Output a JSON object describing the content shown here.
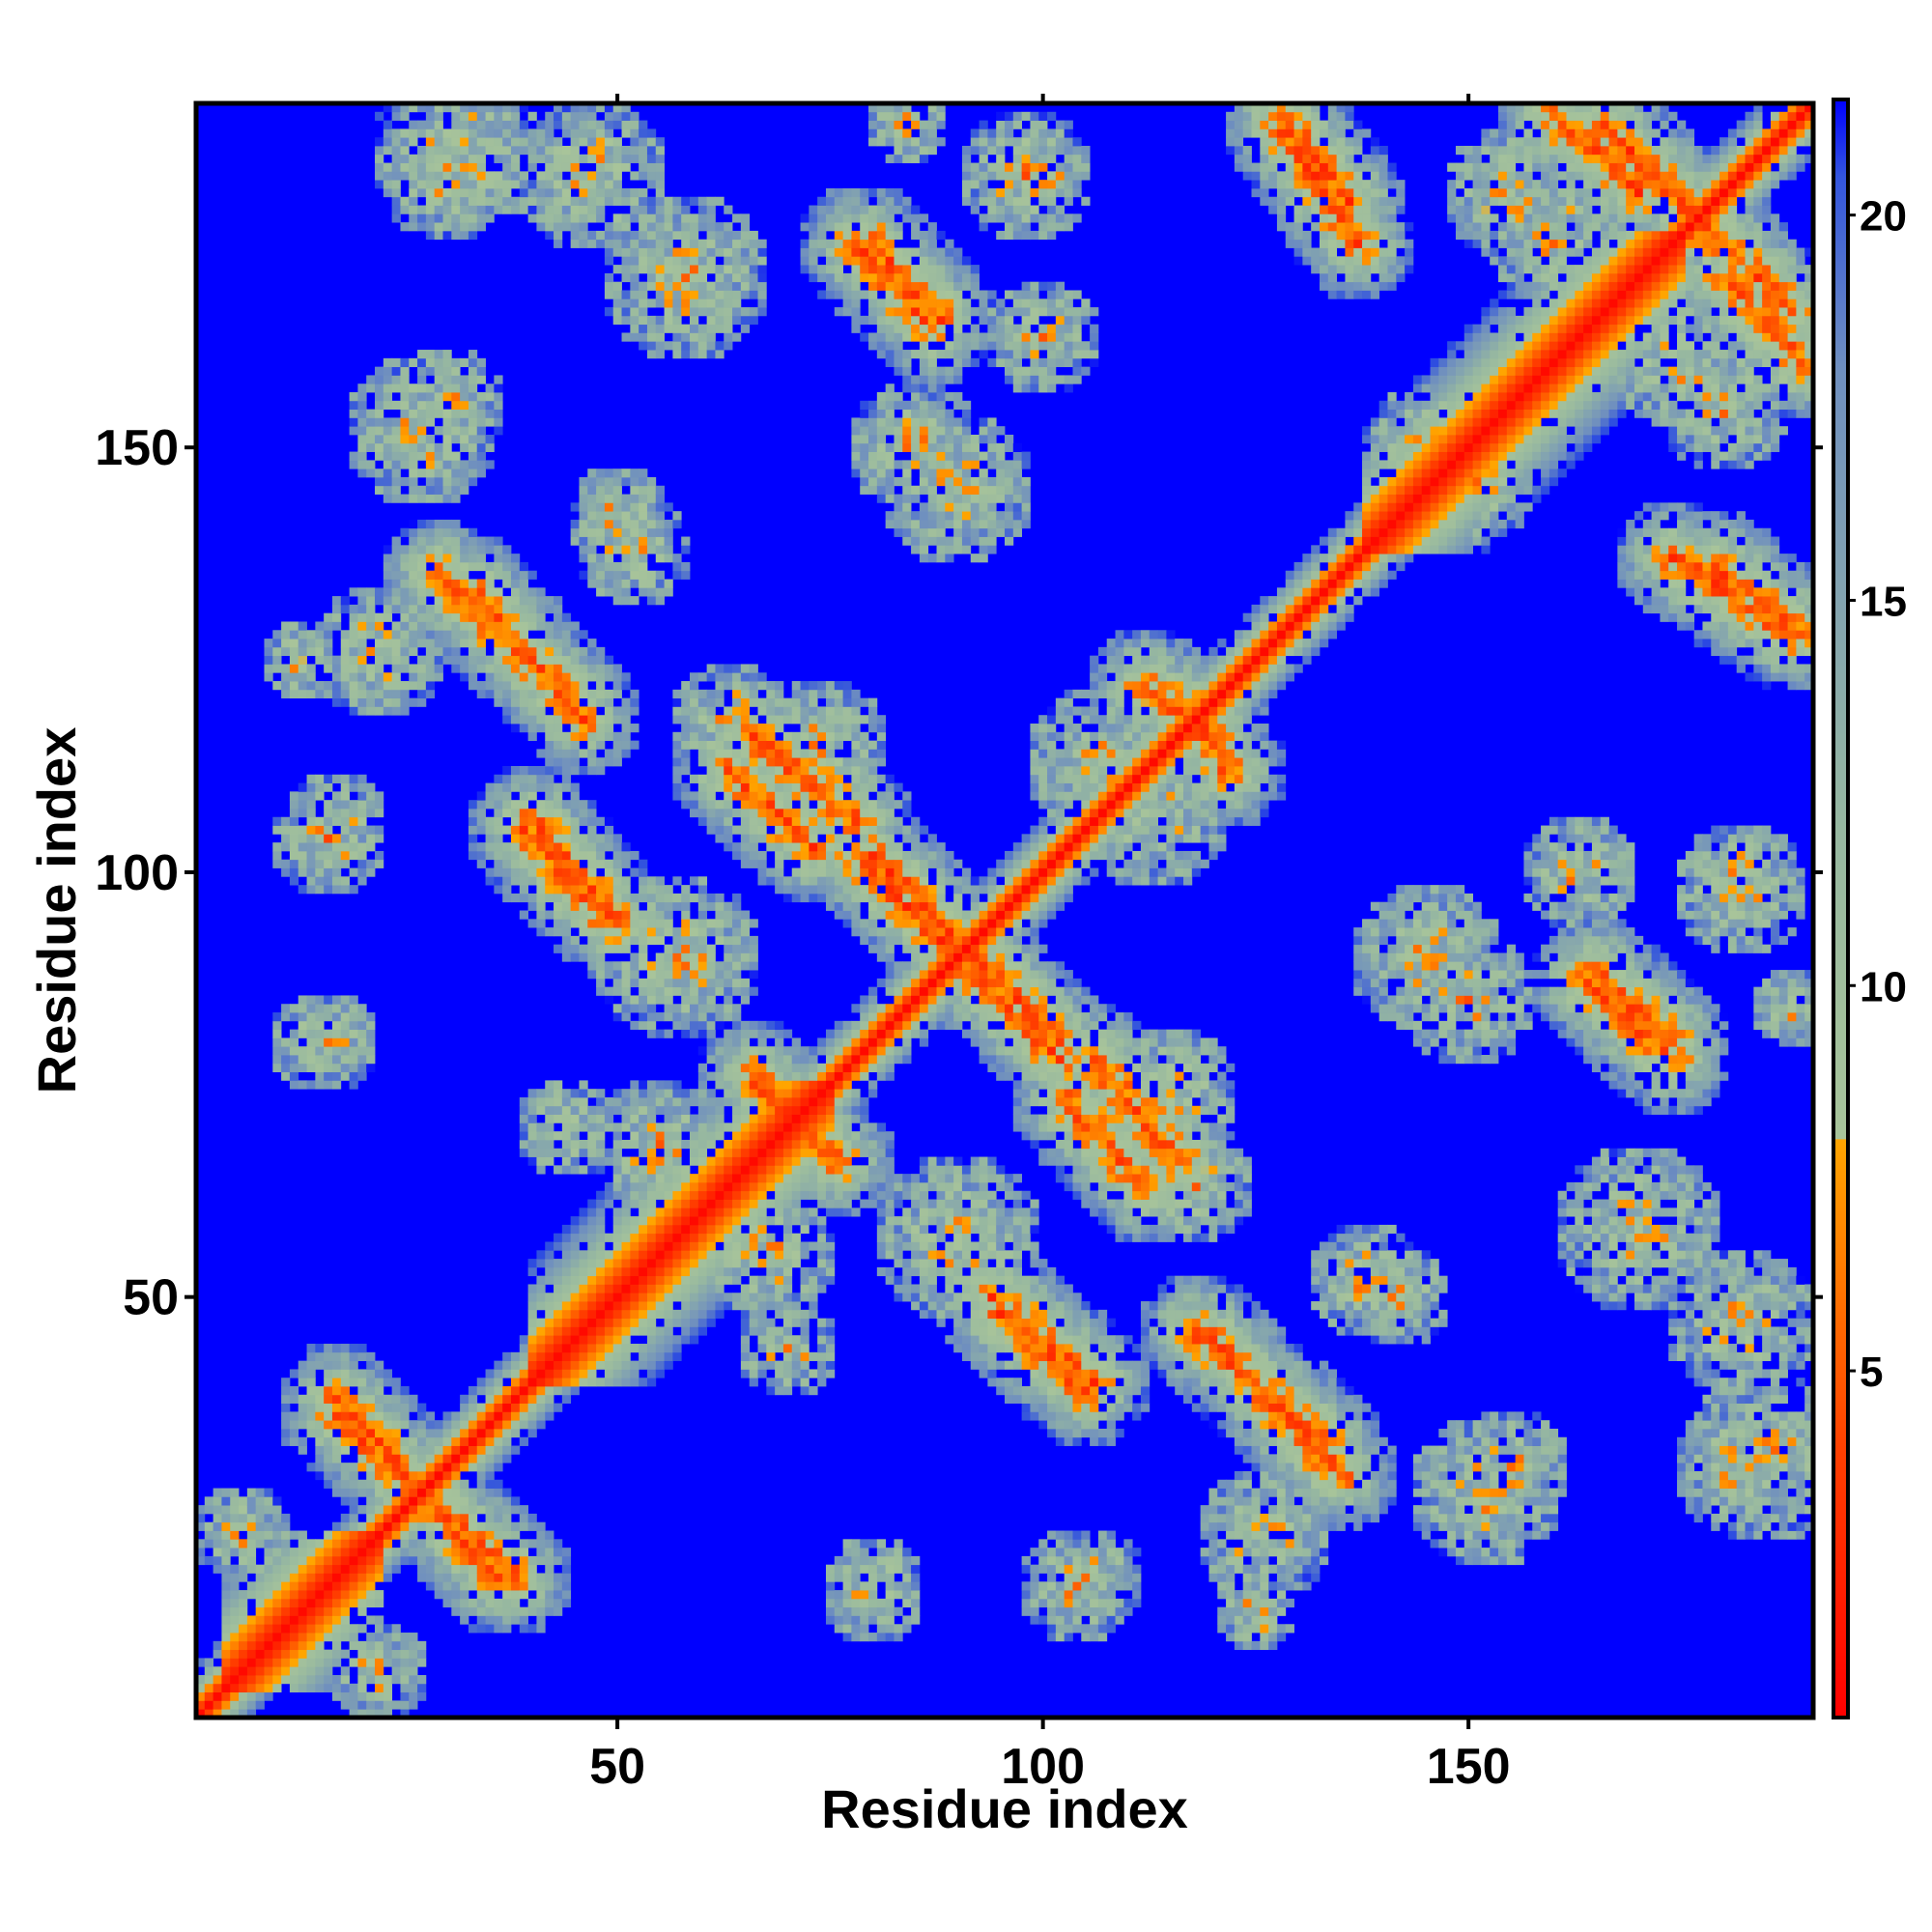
{
  "chart_data": {
    "type": "heatmap",
    "title": "",
    "xlabel": "Residue index",
    "ylabel": "Residue index",
    "xlim": [
      1,
      190
    ],
    "ylim": [
      1,
      190
    ],
    "x_ticks": [
      50,
      100,
      150
    ],
    "y_ticks": [
      50,
      100,
      150
    ],
    "x_tick_labels": [
      "50",
      "100",
      "150"
    ],
    "y_tick_labels": [
      "50",
      "100",
      "150"
    ],
    "colorbar": {
      "range": [
        0.5,
        21.5
      ],
      "ticks": [
        5,
        10,
        15,
        20
      ],
      "tick_labels": [
        "5",
        "10",
        "15",
        "20"
      ],
      "stops": [
        {
          "value": 0.5,
          "color": "#ff0000"
        },
        {
          "value": 4,
          "color": "#ff4000"
        },
        {
          "value": 8,
          "color": "#ffa500"
        },
        {
          "value": 8.01,
          "color": "#a8c49a"
        },
        {
          "value": 12,
          "color": "#97b8a0"
        },
        {
          "value": 18,
          "color": "#6f8fbf"
        },
        {
          "value": 20.5,
          "color": "#3355dd"
        },
        {
          "value": 21.5,
          "color": "#0000ff"
        }
      ]
    },
    "diagonal_band": {
      "core_width": 2,
      "value_at_diagonal": 1,
      "falloff_per_residue": 3
    },
    "helices": [
      {
        "start": 4,
        "end": 22
      },
      {
        "start": 40,
        "end": 75
      },
      {
        "start": 138,
        "end": 175
      }
    ],
    "contact_segments": [
      {
        "x1": 17,
        "y1": 38,
        "x2": 36,
        "y2": 17
      },
      {
        "x1": 29,
        "y1": 135,
        "x2": 45,
        "y2": 120
      },
      {
        "x1": 39,
        "y1": 105,
        "x2": 48,
        "y2": 95
      },
      {
        "x1": 66,
        "y1": 116,
        "x2": 78,
        "y2": 106
      },
      {
        "x1": 78,
        "y1": 102,
        "x2": 90,
        "y2": 90
      },
      {
        "x1": 92,
        "y1": 90,
        "x2": 102,
        "y2": 80
      },
      {
        "x1": 94,
        "y1": 50,
        "x2": 106,
        "y2": 40
      },
      {
        "x1": 118,
        "y1": 46,
        "x2": 133,
        "y2": 33
      },
      {
        "x1": 80,
        "y1": 174,
        "x2": 88,
        "y2": 165
      },
      {
        "x1": 128,
        "y1": 189,
        "x2": 136,
        "y2": 179
      },
      {
        "x1": 160,
        "y1": 189,
        "x2": 170,
        "y2": 180
      },
      {
        "x1": 178,
        "y1": 176,
        "x2": 188,
        "y2": 166
      },
      {
        "x1": 174,
        "y1": 137,
        "x2": 188,
        "y2": 128
      },
      {
        "x1": 164,
        "y1": 87,
        "x2": 174,
        "y2": 78
      },
      {
        "x1": 66,
        "y1": 76,
        "x2": 76,
        "y2": 66
      },
      {
        "x1": 103,
        "y1": 73,
        "x2": 112,
        "y2": 63
      },
      {
        "x1": 116,
        "y1": 120,
        "x2": 122,
        "y2": 112
      }
    ],
    "contact_clusters": [
      {
        "x": 17,
        "y": 106,
        "r": 6
      },
      {
        "x": 15,
        "y": 80,
        "r": 6
      },
      {
        "x": 30,
        "y": 155,
        "r": 7
      },
      {
        "x": 50,
        "y": 142,
        "r": 6
      },
      {
        "x": 47,
        "y": 182,
        "r": 9
      },
      {
        "x": 31,
        "y": 185,
        "r": 10
      },
      {
        "x": 85,
        "y": 150,
        "r": 8
      },
      {
        "x": 84,
        "y": 188,
        "r": 5
      },
      {
        "x": 100,
        "y": 182,
        "r": 6
      },
      {
        "x": 80,
        "y": 16,
        "r": 6
      },
      {
        "x": 104,
        "y": 16,
        "r": 7
      },
      {
        "x": 126,
        "y": 22,
        "r": 8
      },
      {
        "x": 138,
        "y": 52,
        "r": 7
      },
      {
        "x": 152,
        "y": 27,
        "r": 9
      },
      {
        "x": 182,
        "y": 30,
        "r": 8
      },
      {
        "x": 170,
        "y": 58,
        "r": 10
      },
      {
        "x": 145,
        "y": 90,
        "r": 9
      },
      {
        "x": 182,
        "y": 98,
        "r": 8
      },
      {
        "x": 163,
        "y": 100,
        "r": 7
      },
      {
        "x": 107,
        "y": 113,
        "r": 9
      },
      {
        "x": 57,
        "y": 90,
        "r": 10
      },
      {
        "x": 68,
        "y": 55,
        "r": 8
      },
      {
        "x": 44,
        "y": 70,
        "r": 6
      },
      {
        "x": 115,
        "y": 74,
        "r": 8
      },
      {
        "x": 6,
        "y": 22,
        "r": 6
      },
      {
        "x": 13,
        "y": 125,
        "r": 5
      },
      {
        "x": 63,
        "y": 118,
        "r": 7
      },
      {
        "x": 150,
        "y": 146,
        "r": 8
      },
      {
        "x": 155,
        "y": 180,
        "r": 8
      },
      {
        "x": 175,
        "y": 160,
        "r": 8
      }
    ]
  }
}
